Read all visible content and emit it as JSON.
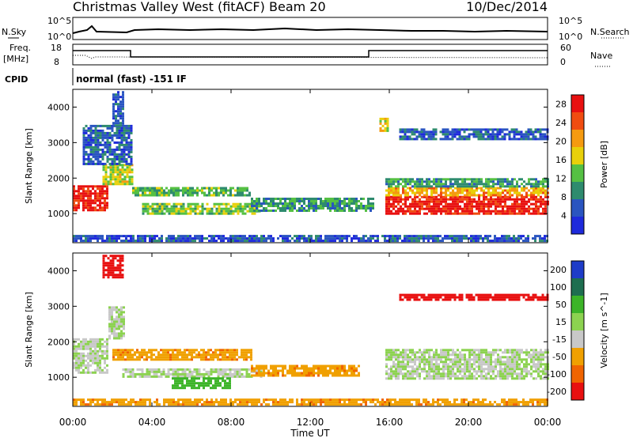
{
  "header": {
    "station": "Christmas Valley West (fitACF)",
    "beam": "Beam 20",
    "date": "10/Dec/2014"
  },
  "strips": {
    "nsky_label": "N.Sky",
    "nsky_ticks": [
      "10^5",
      "10^0"
    ],
    "nsearch_label": "N.Search",
    "nsearch_ticks": [
      "10^5",
      "10^0"
    ],
    "freq_label_1": "Freq.",
    "freq_label_2": "[MHz]",
    "freq_ticks": [
      "18",
      "8"
    ],
    "nave_label": "Nave",
    "nave_ticks": [
      "60",
      "0"
    ],
    "cpid_label": "CPID",
    "cpid_text": "normal (fast) -151 IF"
  },
  "chart_data": [
    {
      "type": "heatmap",
      "title": "",
      "xlabel": "",
      "ylabel": "Slant Range [km]",
      "x_ticks": [
        "00:00",
        "04:00",
        "08:00",
        "12:00",
        "16:00",
        "20:00",
        "00:00"
      ],
      "xlim_hours": [
        0,
        24
      ],
      "y_ticks": [
        1000,
        2000,
        3000,
        4000
      ],
      "ylim": [
        180,
        4500
      ],
      "colorbar": {
        "label": "Power [dB]",
        "ticks": [
          4,
          8,
          12,
          16,
          20,
          24,
          28
        ],
        "range": [
          0,
          30
        ],
        "colors": [
          "#1e2adb",
          "#2a55c0",
          "#2e8b6e",
          "#55c043",
          "#e8d00a",
          "#f59a10",
          "#f04c10",
          "#e81010"
        ]
      },
      "regions": [
        {
          "t0": 0.0,
          "t1": 1.8,
          "r0": 1100,
          "r1": 1800,
          "level": 28
        },
        {
          "t0": 1.5,
          "t1": 3.0,
          "r0": 1800,
          "r1": 2400,
          "level": 16
        },
        {
          "t0": 0.5,
          "t1": 3.0,
          "r0": 2400,
          "r1": 3500,
          "level": 6
        },
        {
          "t0": 2.0,
          "t1": 2.5,
          "r0": 3500,
          "r1": 4450,
          "level": 6
        },
        {
          "t0": 3.0,
          "t1": 9.0,
          "r0": 1500,
          "r1": 1750,
          "level": 12
        },
        {
          "t0": 3.5,
          "t1": 9.5,
          "r0": 1000,
          "r1": 1300,
          "level": 14
        },
        {
          "t0": 9.0,
          "t1": 15.2,
          "r0": 1100,
          "r1": 1450,
          "level": 10
        },
        {
          "t0": 0.0,
          "t1": 16.0,
          "r0": 220,
          "r1": 400,
          "level": 5
        },
        {
          "t0": 15.8,
          "t1": 24.0,
          "r0": 1000,
          "r1": 1500,
          "level": 28
        },
        {
          "t0": 15.8,
          "t1": 24.0,
          "r0": 1500,
          "r1": 1750,
          "level": 20
        },
        {
          "t0": 15.8,
          "t1": 24.0,
          "r0": 1750,
          "r1": 2000,
          "level": 10
        },
        {
          "t0": 15.5,
          "t1": 15.9,
          "r0": 3300,
          "r1": 3700,
          "level": 18
        },
        {
          "t0": 16.5,
          "t1": 24.0,
          "r0": 3100,
          "r1": 3400,
          "level": 6
        },
        {
          "t0": 16.0,
          "t1": 24.0,
          "r0": 220,
          "r1": 400,
          "level": 6
        }
      ]
    },
    {
      "type": "heatmap",
      "title": "",
      "xlabel": "Time UT",
      "ylabel": "Slant Range [km]",
      "x_ticks": [
        "00:00",
        "04:00",
        "08:00",
        "12:00",
        "16:00",
        "20:00",
        "00:00"
      ],
      "xlim_hours": [
        0,
        24
      ],
      "y_ticks": [
        1000,
        2000,
        3000,
        4000
      ],
      "ylim": [
        180,
        4500
      ],
      "colorbar": {
        "label": "Velocity [m s^-1]",
        "ticks": [
          200,
          100,
          50,
          15,
          -15,
          -50,
          -100,
          -200
        ],
        "colors": [
          "#1e3cc8",
          "#1e6e50",
          "#3cb428",
          "#8cd250",
          "#c8c8c8",
          "#f0a000",
          "#f06400",
          "#e81010"
        ]
      },
      "regions": [
        {
          "t0": 0.0,
          "t1": 1.8,
          "r0": 1100,
          "r1": 2100,
          "level": 0
        },
        {
          "t0": 1.8,
          "t1": 2.6,
          "r0": 2100,
          "r1": 3000,
          "level": 0
        },
        {
          "t0": 1.5,
          "t1": 2.5,
          "r0": 3800,
          "r1": 4450,
          "level": -200
        },
        {
          "t0": 2.0,
          "t1": 9.0,
          "r0": 1500,
          "r1": 1800,
          "level": -60
        },
        {
          "t0": 2.5,
          "t1": 9.5,
          "r0": 1000,
          "r1": 1250,
          "level": 0
        },
        {
          "t0": 5.0,
          "t1": 8.0,
          "r0": 700,
          "r1": 1000,
          "level": 50
        },
        {
          "t0": 9.0,
          "t1": 14.5,
          "r0": 1050,
          "r1": 1350,
          "level": -60
        },
        {
          "t0": 0.0,
          "t1": 16.0,
          "r0": 220,
          "r1": 400,
          "level": -60
        },
        {
          "t0": 15.8,
          "t1": 24.0,
          "r0": 950,
          "r1": 1800,
          "level": 0
        },
        {
          "t0": 16.5,
          "t1": 24.0,
          "r0": 3150,
          "r1": 3350,
          "level": -200
        },
        {
          "t0": 16.0,
          "t1": 24.0,
          "r0": 220,
          "r1": 400,
          "level": -60
        }
      ]
    }
  ]
}
